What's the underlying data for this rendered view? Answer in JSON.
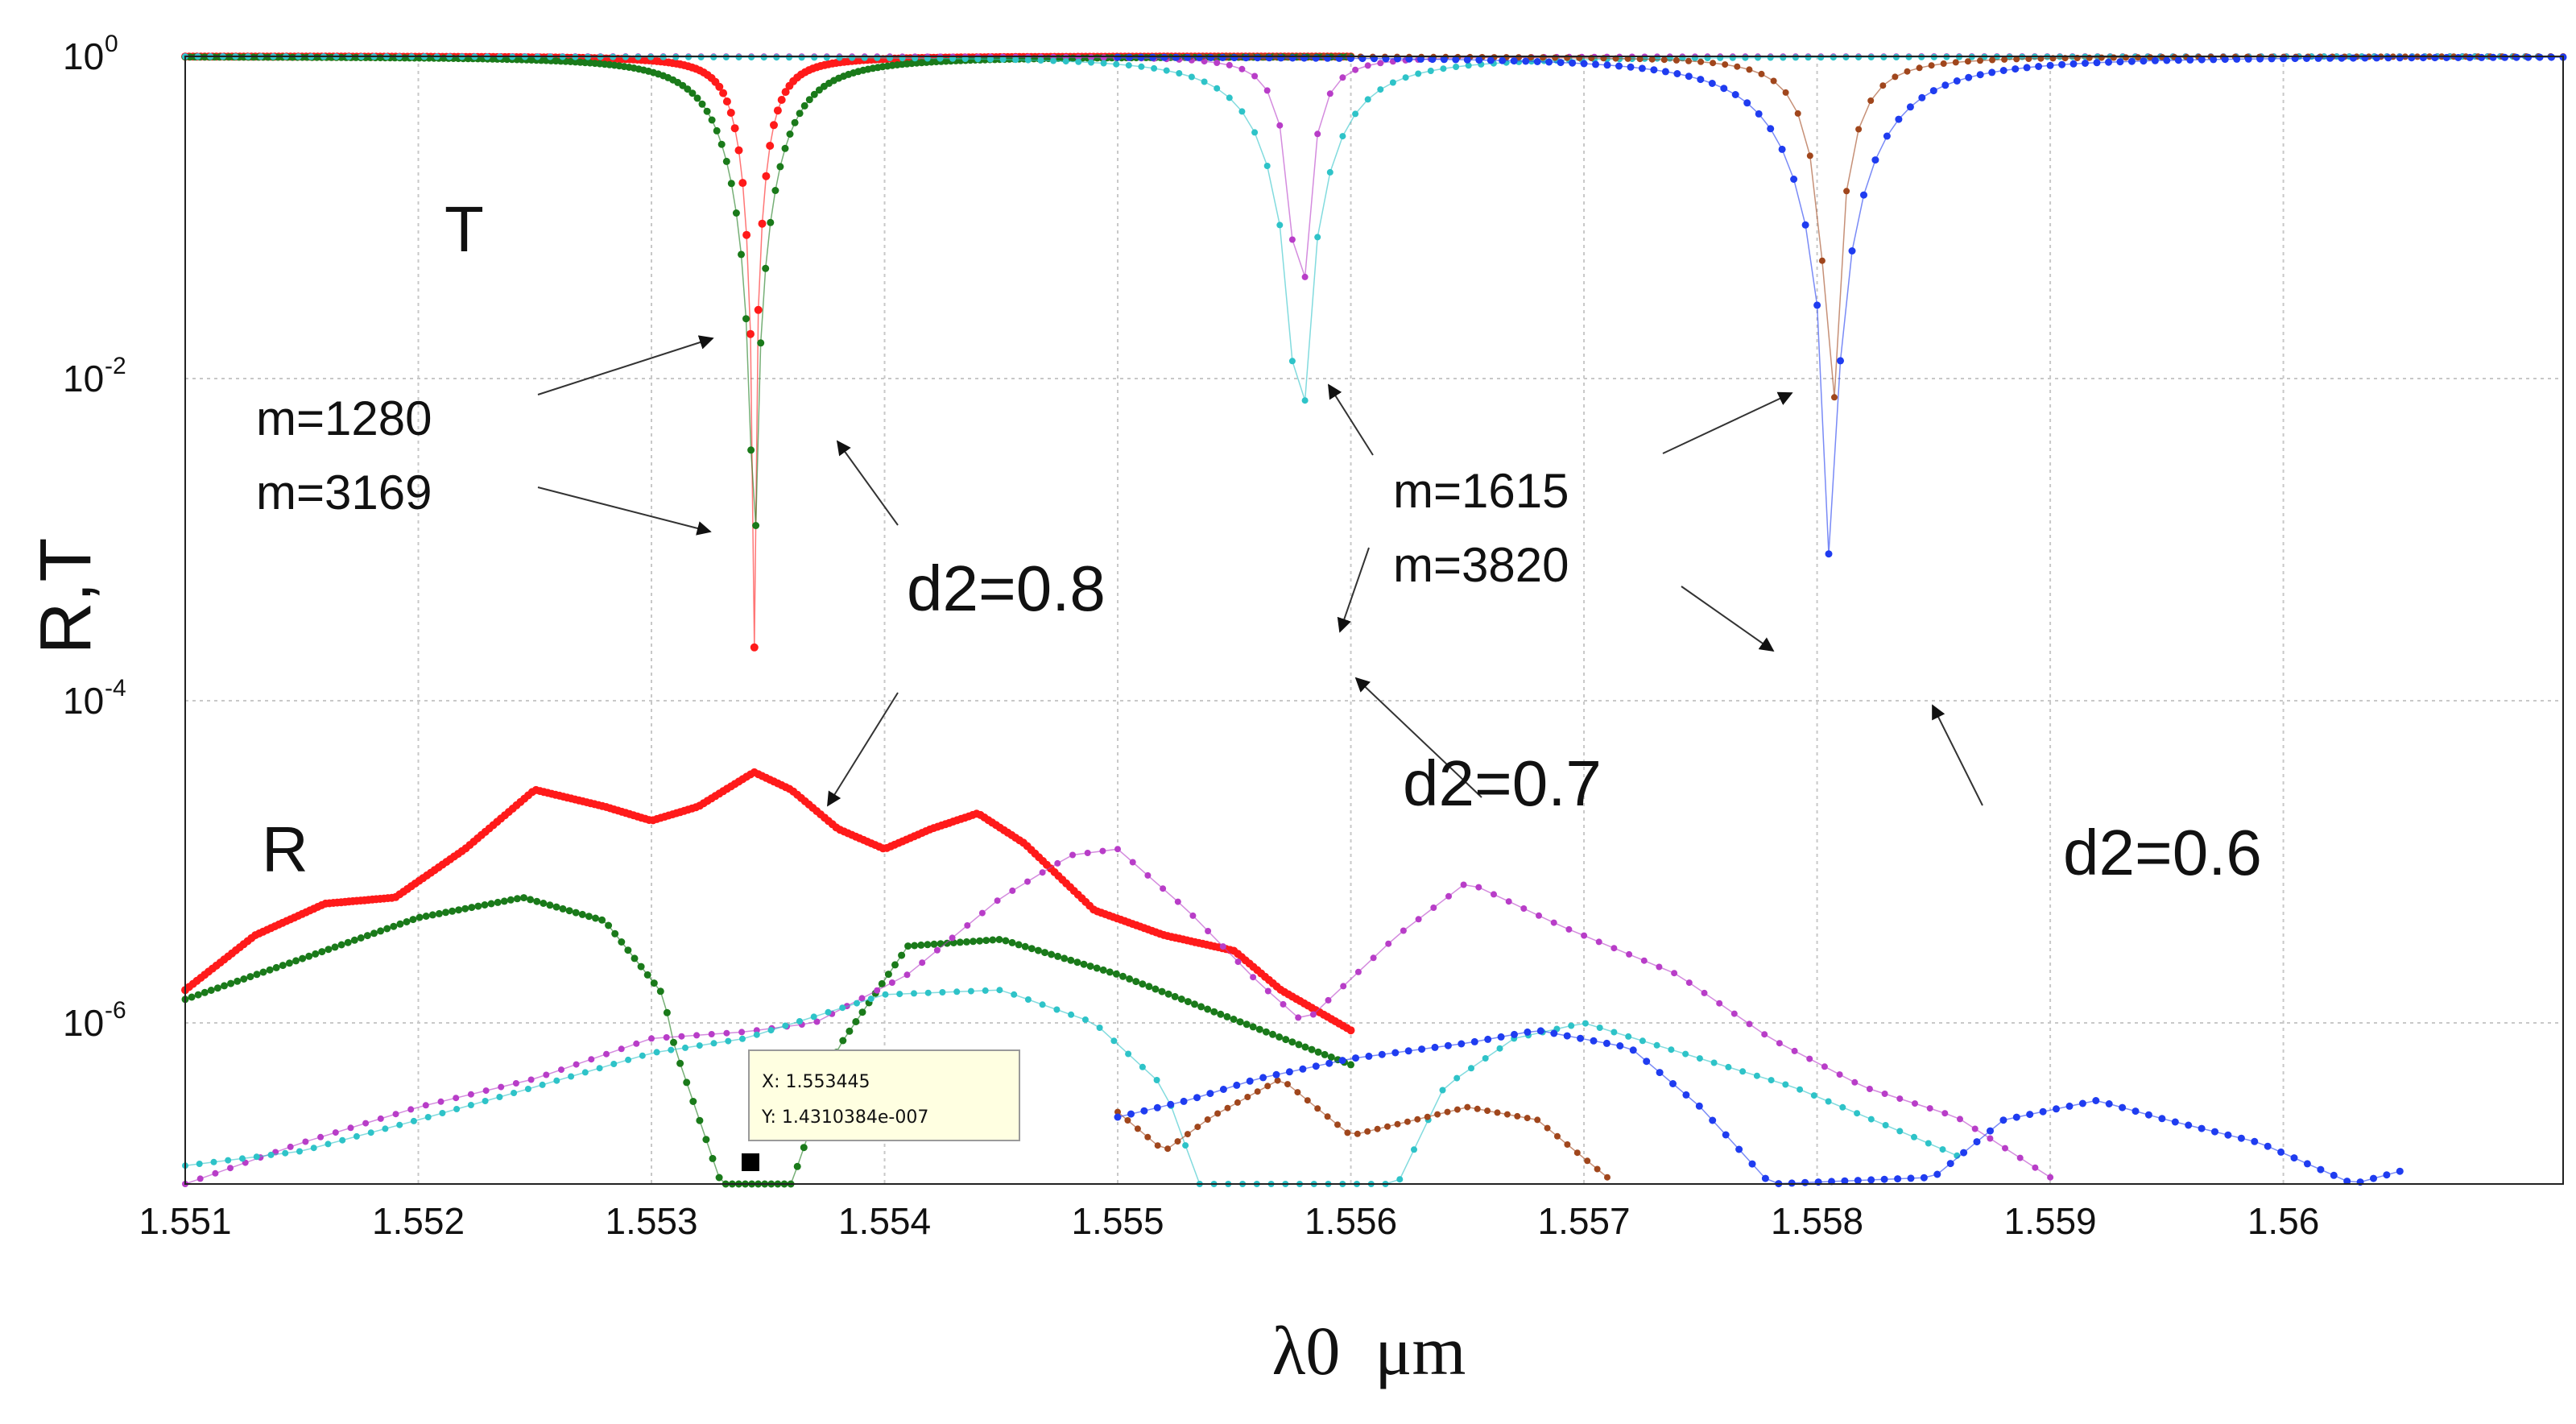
{
  "chart_data": {
    "type": "scatter",
    "title": "",
    "xlabel": "λ0  μm",
    "ylabel": "R,T",
    "yscale": "log",
    "xlim": [
      1.551,
      1.5612
    ],
    "ylim": [
      1e-07,
      1
    ],
    "grid": true,
    "x_ticks": [
      "1.551",
      "1.552",
      "1.553",
      "1.554",
      "1.555",
      "1.556",
      "1.557",
      "1.558",
      "1.559",
      "1.56"
    ],
    "y_ticks": [
      {
        "base": "10",
        "exp": "0",
        "value": 1
      },
      {
        "base": "10",
        "exp": "-2",
        "value": 0.01
      },
      {
        "base": "10",
        "exp": "-4",
        "value": 0.0001
      },
      {
        "base": "10",
        "exp": "-6",
        "value": 1e-06
      }
    ],
    "series": [
      {
        "name": "T, m=1280, d2=0.8",
        "kind": "T",
        "color": "#ff1a1a",
        "dot": 8,
        "x_range": [
          1.551,
          1.556
        ],
        "points": 300,
        "center": 1.55344,
        "width": 0.00011,
        "floor_exp": -4.45
      },
      {
        "name": "T, m=3169, d2=0.8",
        "kind": "T",
        "color": "#1a7a1a",
        "dot": 7,
        "x_range": [
          1.551,
          1.556
        ],
        "points": 240,
        "center": 1.55344,
        "width": 0.00022,
        "floor_exp": -7.1
      },
      {
        "name": "T, m=1615, d2=0.7",
        "kind": "T",
        "color": "#b83dc8",
        "dot": 6,
        "x_range": [
          1.551,
          1.5612
        ],
        "points": 190,
        "center": 1.55578,
        "width": 0.00011,
        "floor_exp": -3.7
      },
      {
        "name": "T, m=3820, d2=0.7",
        "kind": "T",
        "color": "#2ec3c8",
        "dot": 6,
        "x_range": [
          1.551,
          1.5612
        ],
        "points": 190,
        "center": 1.55578,
        "width": 0.00027,
        "floor_exp": -6.6
      },
      {
        "name": "T, m=1615, d2=0.6",
        "kind": "T",
        "color": "#a0461c",
        "dot": 6,
        "x_range": [
          1.555,
          1.5612
        ],
        "points": 120,
        "center": 1.55806,
        "width": 0.00016,
        "floor_exp": -4.0
      },
      {
        "name": "T, m=3820, d2=0.6",
        "kind": "T",
        "color": "#1f3cf0",
        "dot": 7,
        "x_range": [
          1.555,
          1.5612
        ],
        "points": 125,
        "center": 1.55806,
        "width": 0.00035,
        "floor_exp": -7.2
      },
      {
        "name": "R, m=1280, d2=0.8",
        "kind": "R",
        "color": "#ff1a1a",
        "dot": 8,
        "points": 300,
        "knots": [
          [
            1.551,
            1.6e-06
          ],
          [
            1.5513,
            3.5e-06
          ],
          [
            1.5516,
            5.5e-06
          ],
          [
            1.5519,
            6e-06
          ],
          [
            1.5522,
            1.2e-05
          ],
          [
            1.5525,
            2.8e-05
          ],
          [
            1.5528,
            2.2e-05
          ],
          [
            1.553,
            1.8e-05
          ],
          [
            1.5532,
            2.2e-05
          ],
          [
            1.55344,
            3.6e-05
          ],
          [
            1.5536,
            2.8e-05
          ],
          [
            1.5538,
            1.6e-05
          ],
          [
            1.554,
            1.2e-05
          ],
          [
            1.5542,
            1.6e-05
          ],
          [
            1.5544,
            2e-05
          ],
          [
            1.5546,
            1.3e-05
          ],
          [
            1.5549,
            5e-06
          ],
          [
            1.5552,
            3.5e-06
          ],
          [
            1.5555,
            2.8e-06
          ],
          [
            1.5557,
            1.6e-06
          ],
          [
            1.556,
            9e-07
          ]
        ]
      },
      {
        "name": "R, m=3169, d2=0.8",
        "kind": "R",
        "color": "#1a7a1a",
        "dot": 7,
        "points": 180,
        "knots": [
          [
            1.551,
            1.4e-06
          ],
          [
            1.5515,
            2.5e-06
          ],
          [
            1.552,
            4.5e-06
          ],
          [
            1.55245,
            6e-06
          ],
          [
            1.5528,
            4.3e-06
          ],
          [
            1.55305,
            1.5e-06
          ],
          [
            1.5531,
            7e-07
          ],
          [
            1.5533,
            1e-07
          ],
          [
            1.5536,
            1e-07
          ],
          [
            1.5538,
            7e-07
          ],
          [
            1.5541,
            3e-06
          ],
          [
            1.5545,
            3.3e-06
          ],
          [
            1.555,
            2e-06
          ],
          [
            1.556,
            5.5e-07
          ]
        ]
      },
      {
        "name": "R, m=1615, d2=0.7",
        "kind": "R",
        "color": "#b83dc8",
        "dot": 6,
        "points": 125,
        "knots": [
          [
            1.551,
            1e-07
          ],
          [
            1.5515,
            1.8e-07
          ],
          [
            1.552,
            3e-07
          ],
          [
            1.5525,
            4.5e-07
          ],
          [
            1.553,
            8e-07
          ],
          [
            1.5534,
            8.8e-07
          ],
          [
            1.5537,
            1e-06
          ],
          [
            1.5541,
            2e-06
          ],
          [
            1.5545,
            6e-06
          ],
          [
            1.5548,
            1.1e-05
          ],
          [
            1.555,
            1.2e-05
          ],
          [
            1.5553,
            5e-06
          ],
          [
            1.5556,
            1.8e-06
          ],
          [
            1.5558,
            1e-06
          ],
          [
            1.5562,
            3.5e-06
          ],
          [
            1.5565,
            7.5e-06
          ],
          [
            1.5569,
            4e-06
          ],
          [
            1.5574,
            2e-06
          ],
          [
            1.5578,
            8e-07
          ],
          [
            1.5582,
            4e-07
          ],
          [
            1.5586,
            2.6e-07
          ],
          [
            1.559,
            1.1e-07
          ]
        ]
      },
      {
        "name": "R, m=3820, d2=0.7",
        "kind": "R",
        "color": "#2ec3c8",
        "dot": 6,
        "points": 125,
        "knots": [
          [
            1.551,
            1.3e-07
          ],
          [
            1.5515,
            1.6e-07
          ],
          [
            1.552,
            2.5e-07
          ],
          [
            1.5525,
            4e-07
          ],
          [
            1.553,
            6.5e-07
          ],
          [
            1.5534,
            8e-07
          ],
          [
            1.554,
            1.5e-06
          ],
          [
            1.5545,
            1.6e-06
          ],
          [
            1.5549,
            1e-06
          ],
          [
            1.5552,
            4e-07
          ],
          [
            1.55535,
            1e-07
          ],
          [
            1.5555,
            1e-07
          ],
          [
            1.5562,
            1e-07
          ],
          [
            1.5564,
            4e-07
          ],
          [
            1.5567,
            8e-07
          ],
          [
            1.557,
            1e-06
          ],
          [
            1.5575,
            6e-07
          ],
          [
            1.5579,
            4e-07
          ],
          [
            1.5584,
            2e-07
          ],
          [
            1.5586,
            1.5e-07
          ]
        ]
      },
      {
        "name": "R, m=1615, d2=0.6",
        "kind": "R",
        "color": "#a0461c",
        "dot": 6,
        "points": 50,
        "knots": [
          [
            1.555,
            2.8e-07
          ],
          [
            1.5552,
            1.6e-07
          ],
          [
            1.5554,
            2.6e-07
          ],
          [
            1.5557,
            4.5e-07
          ],
          [
            1.556,
            2e-07
          ],
          [
            1.5565,
            3e-07
          ],
          [
            1.5568,
            2.5e-07
          ],
          [
            1.5571,
            1.1e-07
          ]
        ]
      },
      {
        "name": "R, m=3820, d2=0.6",
        "kind": "R",
        "color": "#1f3cf0",
        "dot": 7,
        "points": 98,
        "knots": [
          [
            1.555,
            2.6e-07
          ],
          [
            1.5553,
            3.3e-07
          ],
          [
            1.5556,
            4.5e-07
          ],
          [
            1.556,
            6e-07
          ],
          [
            1.5565,
            7.5e-07
          ],
          [
            1.5568,
            9e-07
          ],
          [
            1.5572,
            7e-07
          ],
          [
            1.5575,
            3e-07
          ],
          [
            1.5578,
            1e-07
          ],
          [
            1.5585,
            1.1e-07
          ],
          [
            1.5588,
            2.5e-07
          ],
          [
            1.5592,
            3.3e-07
          ],
          [
            1.5595,
            2.5e-07
          ],
          [
            1.5599,
            1.8e-07
          ],
          [
            1.5603,
            1e-07
          ],
          [
            1.5605,
            1.2e-07
          ]
        ]
      }
    ],
    "annotations": [
      {
        "text": "T",
        "size": 80
      },
      {
        "text": "R",
        "size": 80
      },
      {
        "text": "m=1280",
        "size": 60
      },
      {
        "text": "m=3169",
        "size": 60
      },
      {
        "text": "d2=0.8",
        "size": 80
      },
      {
        "text": "m=1615",
        "size": 60
      },
      {
        "text": "m=3820",
        "size": 60
      },
      {
        "text": "d2=0.7",
        "size": 80
      },
      {
        "text": "d2=0.6",
        "size": 80
      }
    ],
    "datatip": {
      "x_label": "X: 1.553445",
      "y_label": "Y: 1.4310384e-007",
      "x": 1.553445,
      "y": 1.4310384e-07
    }
  }
}
